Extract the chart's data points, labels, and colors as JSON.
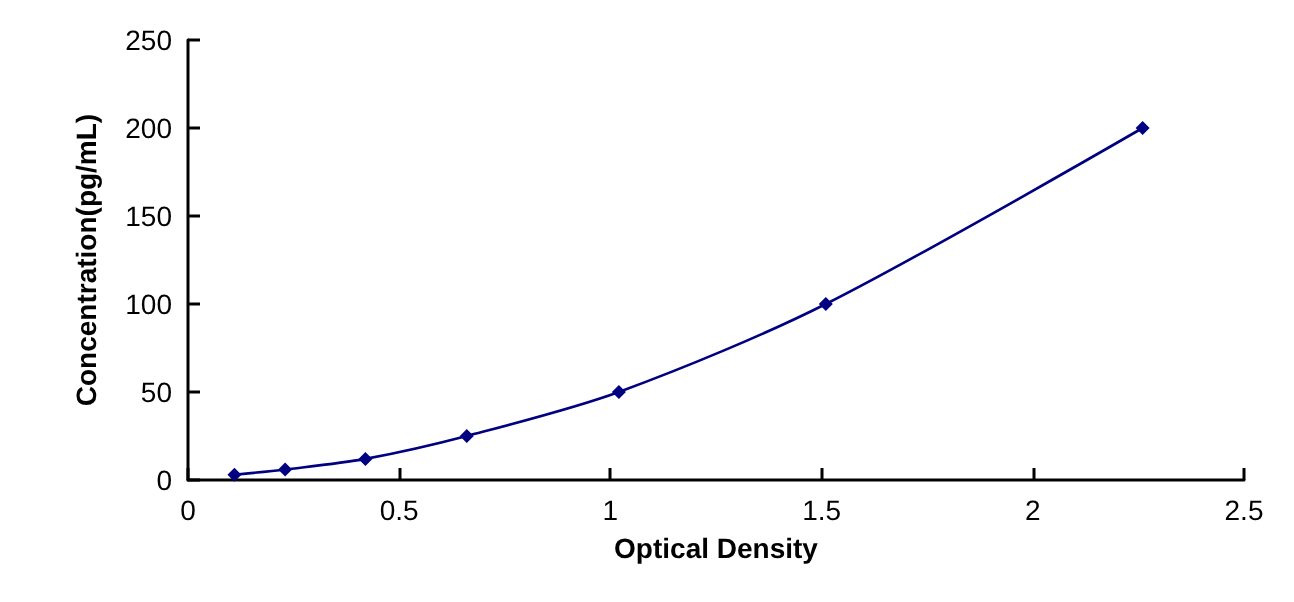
{
  "chart_data": {
    "type": "line",
    "xlabel": "Optical Density",
    "ylabel": "Concentration(pg/mL)",
    "x": [
      0.11,
      0.23,
      0.42,
      0.66,
      1.02,
      1.51,
      2.26
    ],
    "series": [
      {
        "color": "#000080",
        "values": [
          3,
          6,
          12,
          25,
          50,
          100,
          200
        ]
      }
    ],
    "xlim": [
      0,
      2.5
    ],
    "xticks": [
      0,
      0.5,
      1,
      1.5,
      2,
      2.5
    ],
    "ylim": [
      0,
      250
    ],
    "yticks": [
      0,
      50,
      100,
      150,
      200,
      250
    ],
    "grid": false,
    "marker": "diamond",
    "line_style": "solid"
  }
}
